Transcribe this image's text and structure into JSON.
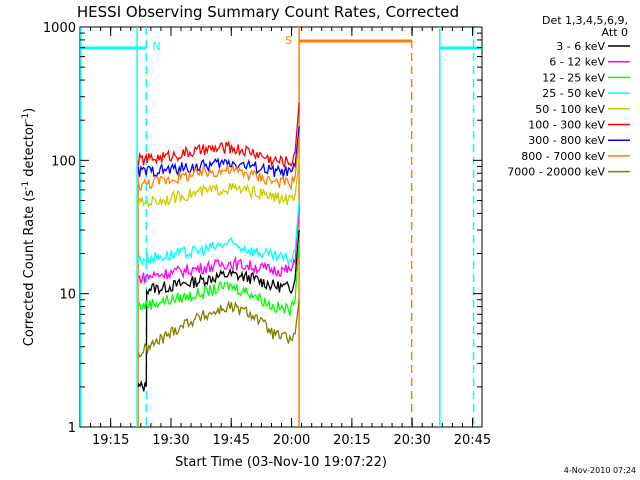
{
  "chart_data": {
    "type": "line",
    "title": "HESSI Observing Summary Count Rates, Corrected",
    "xlabel": "Start Time (03-Nov-10 19:07:22)",
    "ylabel": "Corrected Count Rate (s⁻¹ detector⁻¹)",
    "ylabel_plain": "Corrected Count Rate (s",
    "ylabel_sup1": "-1",
    "ylabel_mid": " detector",
    "ylabel_sup2": "-1",
    "ylabel_end": ")",
    "y_scale": "log",
    "ylim": [
      1,
      1000
    ],
    "xlim_minutes": [
      0,
      100
    ],
    "x_ticks": [
      {
        "label": "19:15",
        "min": 7.63
      },
      {
        "label": "19:30",
        "min": 22.63
      },
      {
        "label": "19:45",
        "min": 37.63
      },
      {
        "label": "20:00",
        "min": 52.63
      },
      {
        "label": "20:15",
        "min": 67.63
      },
      {
        "label": "20:30",
        "min": 82.63
      },
      {
        "label": "20:45",
        "min": 97.63
      }
    ],
    "y_ticks": [
      {
        "label": "1",
        "v": 1
      },
      {
        "label": "10",
        "v": 10
      },
      {
        "label": "100",
        "v": 100
      },
      {
        "label": "1000",
        "v": 1000
      }
    ],
    "legend_header": [
      "Det 1,3,4,5,6,9,",
      "Att 0"
    ],
    "legend_position": "right, outside plot",
    "series": [
      {
        "name": "3 - 6 keV",
        "color": "#000000",
        "pts": [
          [
            14.5,
            2
          ],
          [
            14.6,
            2
          ],
          [
            16.5,
            2
          ],
          [
            16.6,
            11
          ],
          [
            20,
            11
          ],
          [
            30,
            12.5
          ],
          [
            37,
            14
          ],
          [
            43,
            13
          ],
          [
            48,
            11.5
          ],
          [
            52.5,
            11
          ],
          [
            53.5,
            13
          ],
          [
            54.5,
            30
          ]
        ]
      },
      {
        "name": "6 - 12 keV",
        "color": "#ff00ff",
        "pts": [
          [
            14.5,
            13
          ],
          [
            20,
            14
          ],
          [
            30,
            15.5
          ],
          [
            37,
            17
          ],
          [
            43,
            16
          ],
          [
            48,
            15
          ],
          [
            52.5,
            15
          ],
          [
            53.5,
            17
          ],
          [
            54.5,
            45
          ]
        ]
      },
      {
        "name": "12 - 25 keV",
        "color": "#00ff00",
        "pts": [
          [
            14.5,
            8
          ],
          [
            20,
            8.7
          ],
          [
            30,
            10
          ],
          [
            37,
            11.5
          ],
          [
            43,
            10
          ],
          [
            48,
            8
          ],
          [
            52.5,
            7.5
          ],
          [
            53.5,
            9
          ],
          [
            54.5,
            25
          ]
        ]
      },
      {
        "name": "25 - 50 keV",
        "color": "#00ffff",
        "pts": [
          [
            14.5,
            18
          ],
          [
            20,
            19
          ],
          [
            30,
            21
          ],
          [
            37,
            24
          ],
          [
            43,
            21
          ],
          [
            48,
            19
          ],
          [
            52.5,
            18
          ],
          [
            53.5,
            21
          ],
          [
            54.5,
            50
          ]
        ]
      },
      {
        "name": "50 - 100 keV",
        "color": "#cccc00",
        "pts": [
          [
            14.5,
            48
          ],
          [
            20,
            50
          ],
          [
            30,
            58
          ],
          [
            37,
            62
          ],
          [
            43,
            58
          ],
          [
            48,
            53
          ],
          [
            52.5,
            50
          ],
          [
            53.5,
            55
          ],
          [
            54.5,
            100
          ]
        ]
      },
      {
        "name": "100 - 300 keV",
        "color": "#ff0000",
        "pts": [
          [
            14.5,
            100
          ],
          [
            20,
            105
          ],
          [
            30,
            118
          ],
          [
            37,
            125
          ],
          [
            43,
            115
          ],
          [
            48,
            100
          ],
          [
            52.5,
            97
          ],
          [
            53.5,
            115
          ],
          [
            54.5,
            270
          ]
        ]
      },
      {
        "name": "300 - 800 keV",
        "color": "#0000ff",
        "pts": [
          [
            14.5,
            82
          ],
          [
            20,
            84
          ],
          [
            30,
            90
          ],
          [
            37,
            97
          ],
          [
            43,
            90
          ],
          [
            48,
            83
          ],
          [
            52.5,
            80
          ],
          [
            53.5,
            90
          ],
          [
            54.5,
            180
          ]
        ]
      },
      {
        "name": "800 - 7000 keV",
        "color": "#ff8000",
        "pts": [
          [
            14.5,
            65
          ],
          [
            20,
            70
          ],
          [
            30,
            80
          ],
          [
            37,
            85
          ],
          [
            43,
            78
          ],
          [
            48,
            70
          ],
          [
            52.5,
            67
          ],
          [
            53.5,
            75
          ],
          [
            54.5,
            150
          ]
        ]
      },
      {
        "name": "7000 - 20000 keV",
        "color": "#808000",
        "pts": [
          [
            14.5,
            3.5
          ],
          [
            20,
            4.5
          ],
          [
            26,
            6
          ],
          [
            37,
            8
          ],
          [
            43,
            7
          ],
          [
            48,
            5
          ],
          [
            52.5,
            4.5
          ],
          [
            53.5,
            5
          ],
          [
            54.5,
            9
          ]
        ]
      }
    ],
    "flags": {
      "night_label": "N",
      "saa_label": "S",
      "night_color": "#00ffff",
      "saa_color": "#ff8000",
      "night_bars": [
        [
          0,
          16.5
        ],
        [
          89.5,
          100
        ]
      ],
      "saa_bar": [
        54.5,
        82.5
      ],
      "night_solid_lines": [
        0.2,
        14.2,
        89.5
      ],
      "night_dashed_lines": [
        16.5,
        97.9
      ],
      "saa_solid_lines": [
        54.5
      ],
      "saa_dashed_lines": [
        82.5
      ],
      "flare_line_min": 14.5,
      "flare_line_color": "#ff8000"
    }
  },
  "footer": {
    "date_stamp": "4-Nov-2010 07:24"
  }
}
